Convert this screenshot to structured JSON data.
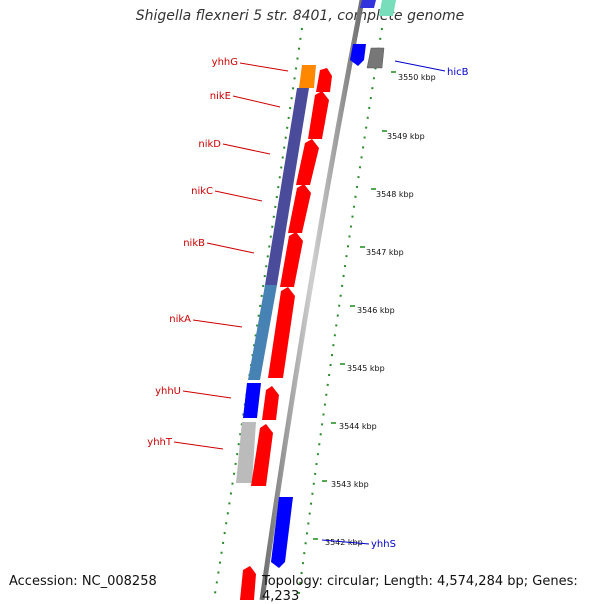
{
  "title": "Shigella flexneri 5 str. 8401, complete genome",
  "accession": "Accession: NC_008258",
  "topology": "Topology: circular; Length: 4,574,284 bp; Genes: 4,233",
  "colors": {
    "red": "#ff0000",
    "blue": "#0000ff",
    "orange": "#ff8800",
    "gray": "#bbbbbb",
    "dark_gray": "#777777",
    "backbone": "#888888",
    "purple": "#4b4b9b",
    "steel_blue": "#4682b4",
    "green_dots": "#2a8a2a",
    "label_red": "#cc0000",
    "label_blue": "#0000cc"
  },
  "scale_labels": [
    "3550 kbp",
    "3549 kbp",
    "3548 kbp",
    "3547 kbp",
    "3546 kbp",
    "3545 kbp",
    "3544 kbp",
    "3543 kbp",
    "3542 kbp"
  ],
  "left_labels": [
    "yhhG",
    "nikE",
    "nikD",
    "nikC",
    "nikB",
    "nikA",
    "yhhU",
    "yhhT"
  ],
  "right_labels": [
    "hicB",
    "yhhS"
  ]
}
